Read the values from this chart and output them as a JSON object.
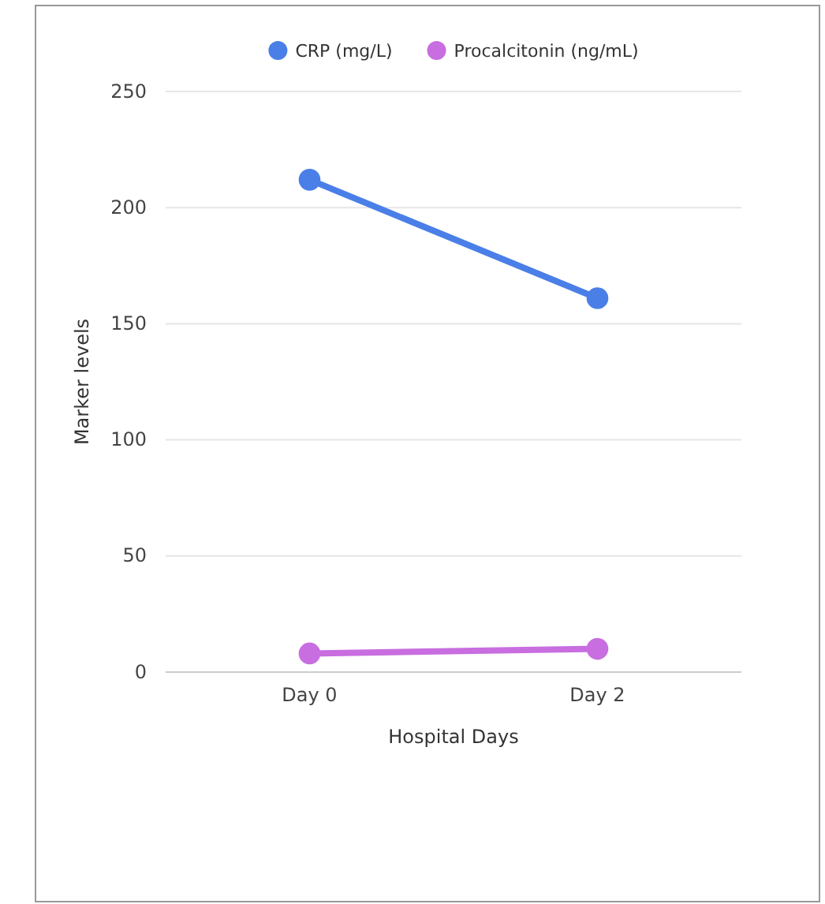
{
  "chart_data": {
    "type": "line",
    "xlabel": "Hospital Days",
    "ylabel": "Marker levels",
    "categories": [
      "Day 0",
      "Day 2"
    ],
    "series": [
      {
        "name": "CRP (mg/L)",
        "color": "#4a7fe8",
        "values": [
          212,
          161
        ]
      },
      {
        "name": "Procalcitonin (ng/mL)",
        "color": "#c86ee0",
        "values": [
          8,
          10
        ]
      }
    ],
    "ylim": [
      0,
      250
    ],
    "yticks": [
      0,
      50,
      100,
      150,
      200,
      250
    ],
    "grid": "y",
    "legend": "top",
    "marker": "circle",
    "line_style": "solid"
  }
}
